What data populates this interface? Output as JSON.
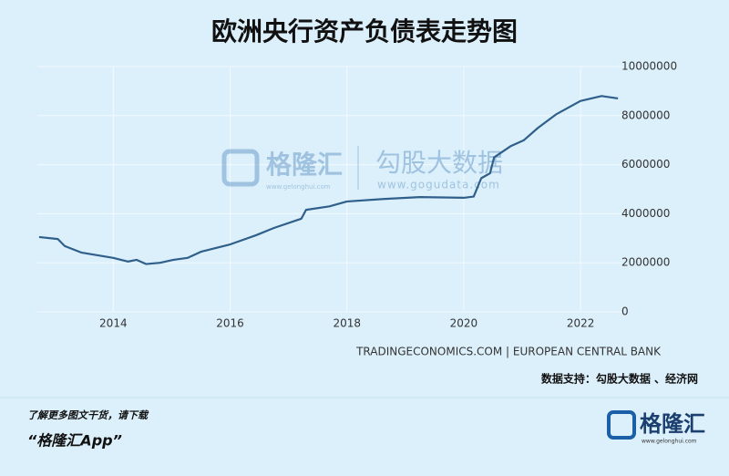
{
  "chart_data": {
    "type": "line",
    "title": "欧洲央行资产负债表走势图",
    "x": [
      2012.73,
      2013.05,
      2013.17,
      2013.45,
      2014.0,
      2014.25,
      2014.4,
      2014.56,
      2014.8,
      2015.03,
      2015.27,
      2015.5,
      2016.0,
      2016.44,
      2016.75,
      2017.22,
      2017.3,
      2017.7,
      2018.0,
      2018.62,
      2019.25,
      2020.0,
      2020.17,
      2020.3,
      2020.45,
      2020.52,
      2020.8,
      2021.03,
      2021.27,
      2021.58,
      2022.0,
      2022.36,
      2022.64
    ],
    "values": [
      3050000,
      2970000,
      2680000,
      2420000,
      2200000,
      2050000,
      2120000,
      1950000,
      2000000,
      2120000,
      2200000,
      2450000,
      2750000,
      3120000,
      3420000,
      3800000,
      4160000,
      4300000,
      4500000,
      4600000,
      4680000,
      4650000,
      4700000,
      5450000,
      5650000,
      6300000,
      6750000,
      7000000,
      7500000,
      8050000,
      8600000,
      8800000,
      8700000
    ],
    "color": "#2f5f8a",
    "xlim": [
      2012.7,
      2022.7
    ],
    "xticks": [
      2014,
      2016,
      2018,
      2020,
      2022
    ],
    "ylim": [
      0,
      10000000
    ],
    "yticks": [
      0,
      2000000,
      4000000,
      6000000,
      8000000,
      10000000
    ],
    "grid": true
  },
  "source": "TRADINGECONOMICS.COM | EUROPEAN CENTRAL BANK",
  "data_support": "数据支持：勾股大数据 、经济网",
  "watermark": {
    "brand": "格隆汇",
    "brand_url": "www.gelonghui.com",
    "partner": "勾股大数据",
    "partner_url": "www.gogudata.com"
  },
  "footer": {
    "prompt": "了解更多图文干货，请下载",
    "app": "“格隆汇App”"
  },
  "logo": {
    "name": "格隆汇",
    "url": "www.gelonghui.com"
  }
}
